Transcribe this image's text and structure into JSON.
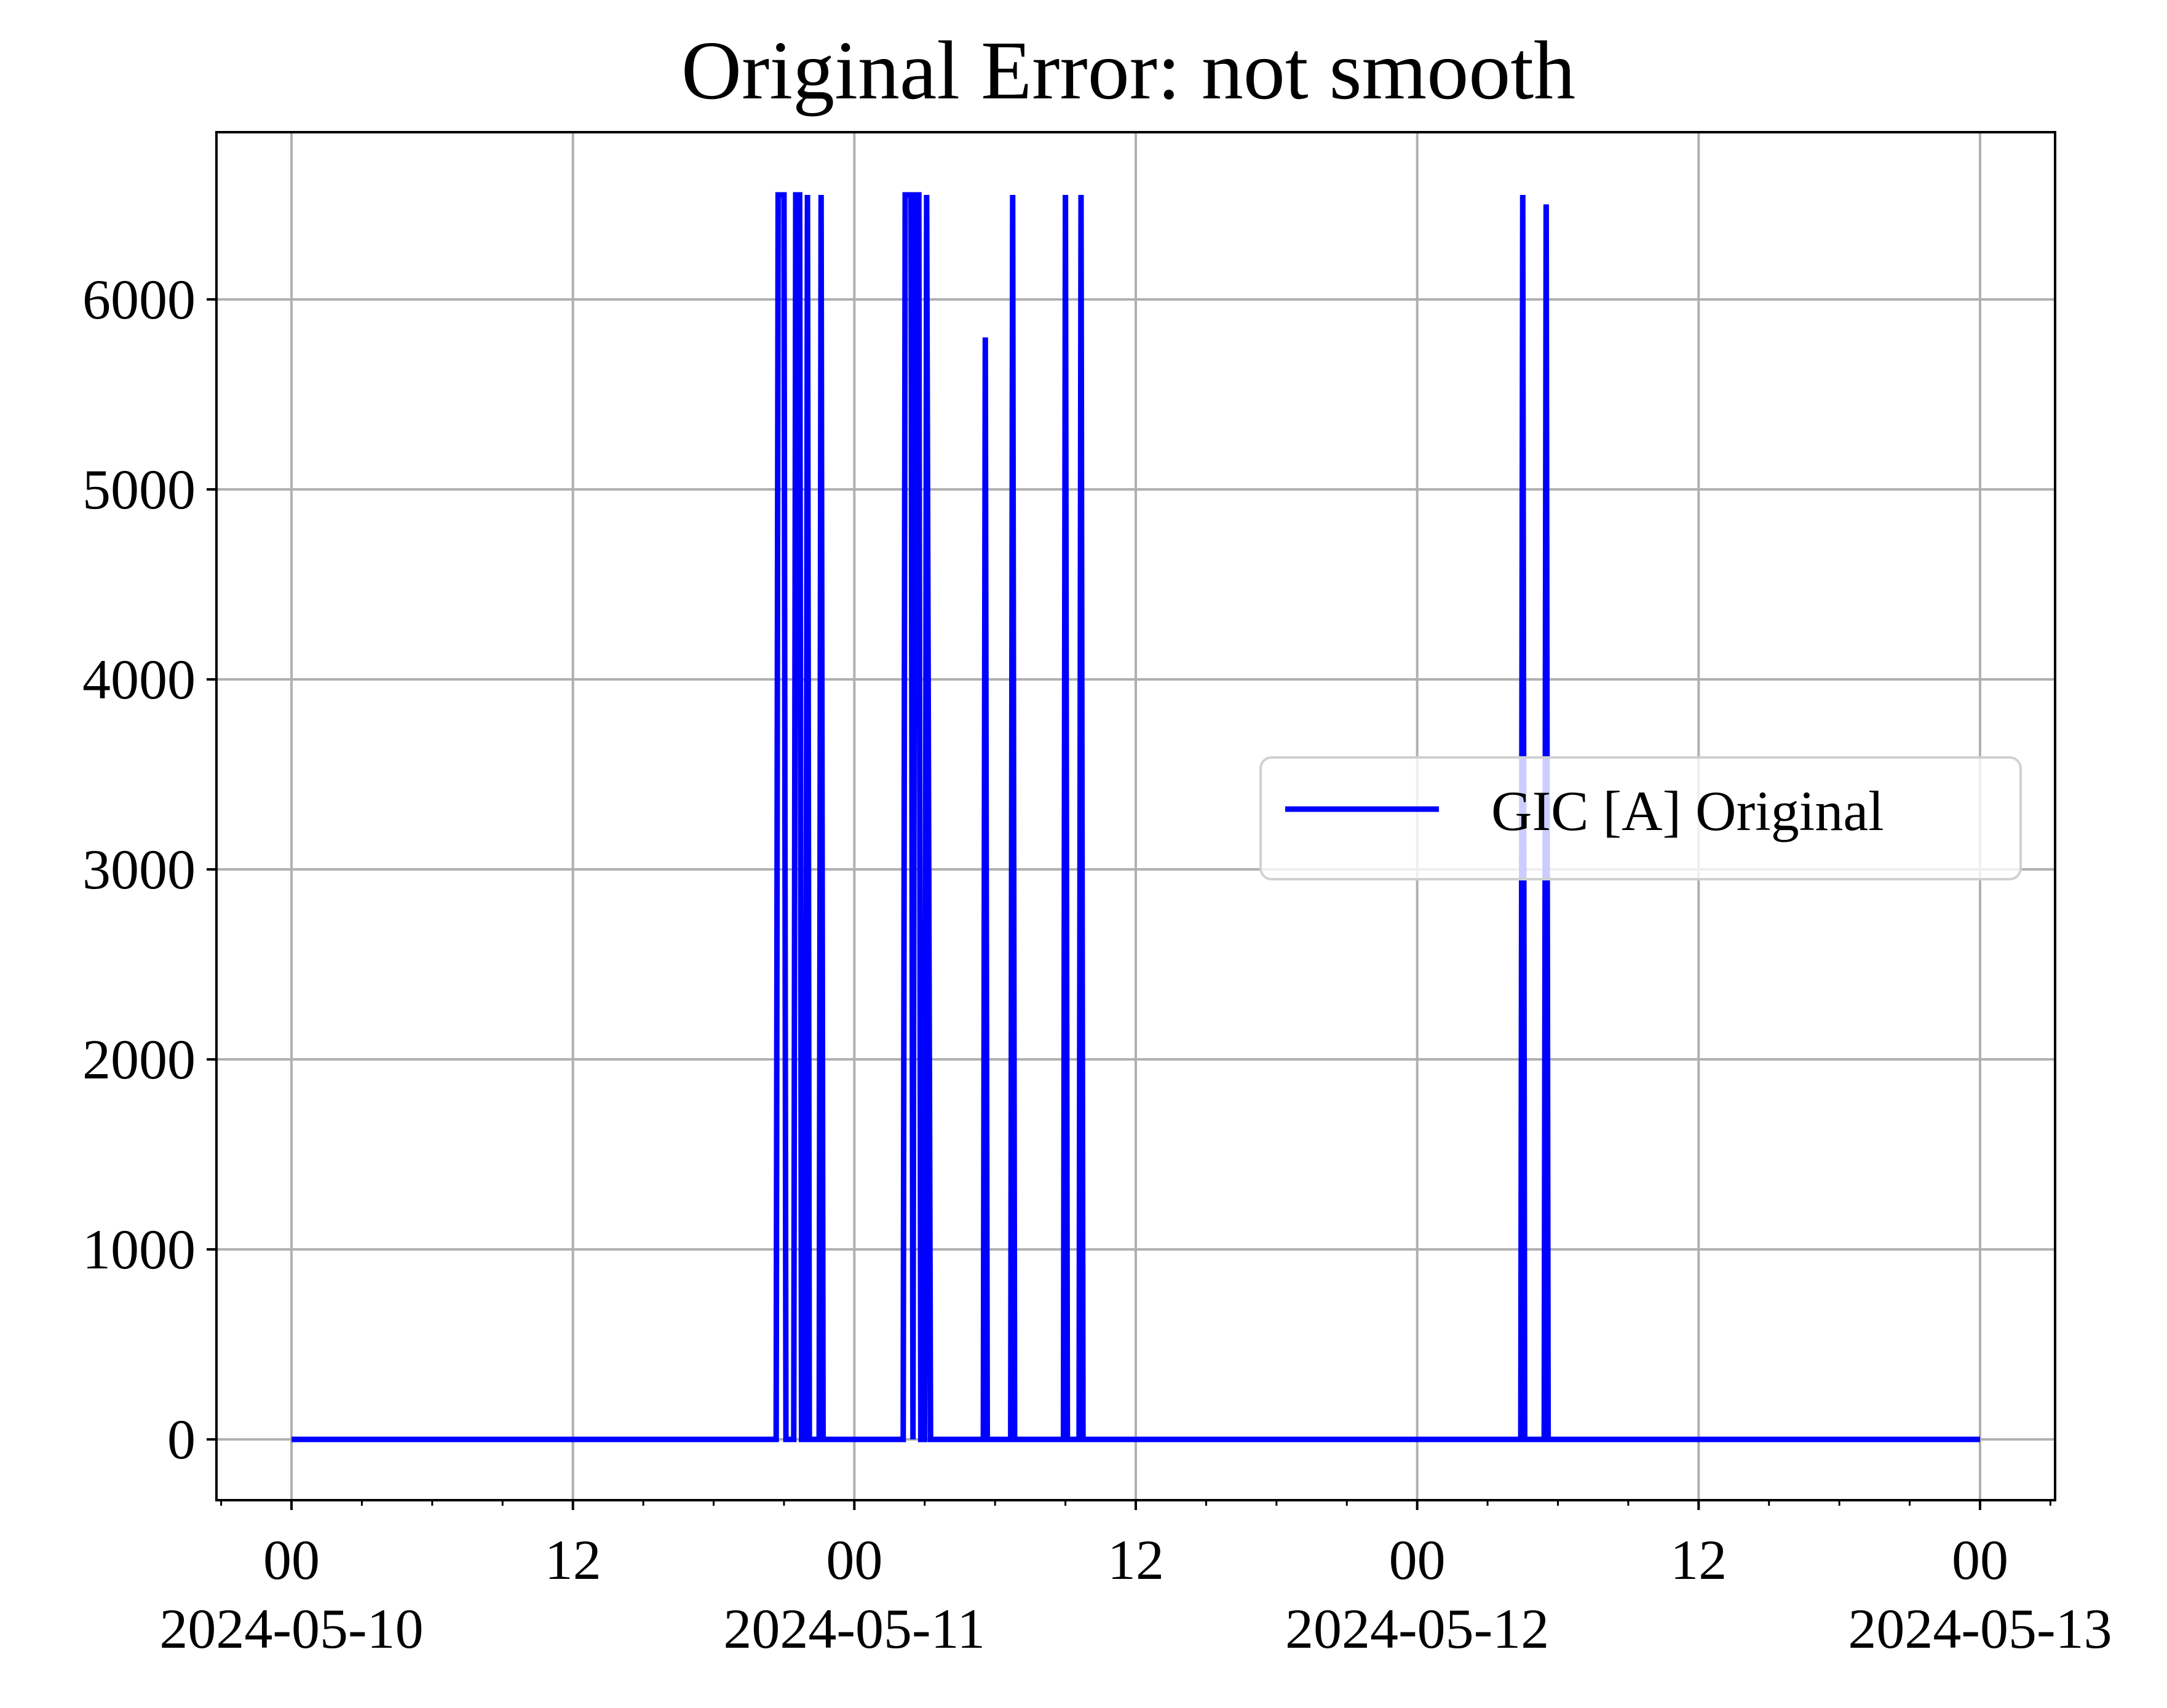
{
  "chart_data": {
    "type": "line",
    "title": "Original Error: not smooth",
    "xlabel": "",
    "ylabel": "",
    "x_axis_kind": "datetime",
    "xlim": [
      "2024-05-09T20:48",
      "2024-05-13T03:12"
    ],
    "ylim": [
      -320,
      6880
    ],
    "grid": true,
    "legend_position": "center-right",
    "x_ticks": [
      {
        "value": "2024-05-10T00:00",
        "label_top": "00",
        "label_bottom": "2024-05-10"
      },
      {
        "value": "2024-05-10T12:00",
        "label_top": "12",
        "label_bottom": ""
      },
      {
        "value": "2024-05-11T00:00",
        "label_top": "00",
        "label_bottom": "2024-05-11"
      },
      {
        "value": "2024-05-11T12:00",
        "label_top": "12",
        "label_bottom": ""
      },
      {
        "value": "2024-05-12T00:00",
        "label_top": "00",
        "label_bottom": "2024-05-12"
      },
      {
        "value": "2024-05-12T12:00",
        "label_top": "12",
        "label_bottom": ""
      },
      {
        "value": "2024-05-13T00:00",
        "label_top": "00",
        "label_bottom": "2024-05-13"
      }
    ],
    "y_ticks": [
      0,
      1000,
      2000,
      3000,
      4000,
      5000,
      6000
    ],
    "series": [
      {
        "name": "GIC [A] Original",
        "color": "#0000ff",
        "points": [
          [
            "2024-05-10T00:00",
            0
          ],
          [
            "2024-05-10T20:40",
            0
          ],
          [
            "2024-05-10T20:45",
            6550
          ],
          [
            "2024-05-10T21:00",
            6550
          ],
          [
            "2024-05-10T21:05",
            0
          ],
          [
            "2024-05-10T21:25",
            0
          ],
          [
            "2024-05-10T21:30",
            6550
          ],
          [
            "2024-05-10T21:40",
            6550
          ],
          [
            "2024-05-10T21:45",
            0
          ],
          [
            "2024-05-10T21:55",
            0
          ],
          [
            "2024-05-10T22:00",
            6550
          ],
          [
            "2024-05-10T22:05",
            0
          ],
          [
            "2024-05-10T22:30",
            0
          ],
          [
            "2024-05-10T22:35",
            6550
          ],
          [
            "2024-05-10T22:40",
            0
          ],
          [
            "2024-05-11T02:05",
            0
          ],
          [
            "2024-05-11T02:10",
            6550
          ],
          [
            "2024-05-11T02:25",
            6550
          ],
          [
            "2024-05-11T02:30",
            0
          ],
          [
            "2024-05-11T02:35",
            6550
          ],
          [
            "2024-05-11T02:45",
            6550
          ],
          [
            "2024-05-11T02:50",
            0
          ],
          [
            "2024-05-11T03:00",
            0
          ],
          [
            "2024-05-11T03:05",
            6550
          ],
          [
            "2024-05-11T03:15",
            0
          ],
          [
            "2024-05-11T05:30",
            0
          ],
          [
            "2024-05-11T05:35",
            5800
          ],
          [
            "2024-05-11T05:40",
            0
          ],
          [
            "2024-05-11T06:40",
            0
          ],
          [
            "2024-05-11T06:45",
            6550
          ],
          [
            "2024-05-11T06:50",
            0
          ],
          [
            "2024-05-11T08:55",
            0
          ],
          [
            "2024-05-11T09:00",
            6550
          ],
          [
            "2024-05-11T09:05",
            0
          ],
          [
            "2024-05-11T09:35",
            0
          ],
          [
            "2024-05-11T09:40",
            6550
          ],
          [
            "2024-05-11T09:45",
            0
          ],
          [
            "2024-05-12T04:25",
            0
          ],
          [
            "2024-05-12T04:30",
            6550
          ],
          [
            "2024-05-12T04:35",
            0
          ],
          [
            "2024-05-12T05:25",
            0
          ],
          [
            "2024-05-12T05:30",
            6500
          ],
          [
            "2024-05-12T05:35",
            0
          ],
          [
            "2024-05-13T00:00",
            0
          ]
        ]
      }
    ]
  }
}
